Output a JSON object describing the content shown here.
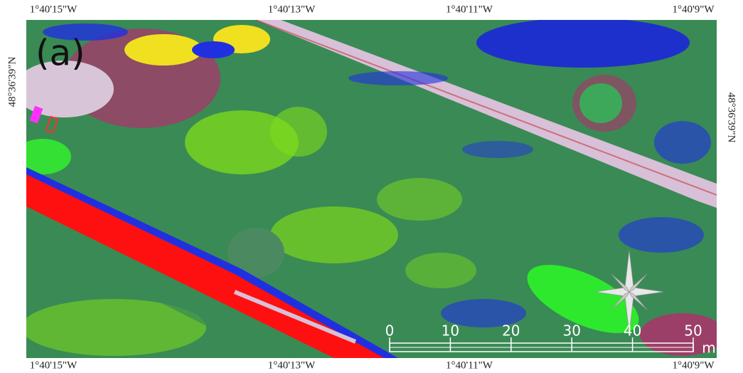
{
  "map": {
    "panel_label": "(a)",
    "top_labels": [
      "1°40'15\"W",
      "1°40'13\"W",
      "1°40'11\"W",
      "1°40'9\"W"
    ],
    "bottom_labels": [
      "1°40'15\"W",
      "1°40'13\"W",
      "1°40'11\"W",
      "1°40'9\"W"
    ],
    "left_label": "48°36'39\"N",
    "right_label": "48°36'39\"N",
    "scale_bar": {
      "ticks": [
        0,
        10,
        20,
        30,
        40,
        50
      ],
      "unit": "m"
    }
  }
}
